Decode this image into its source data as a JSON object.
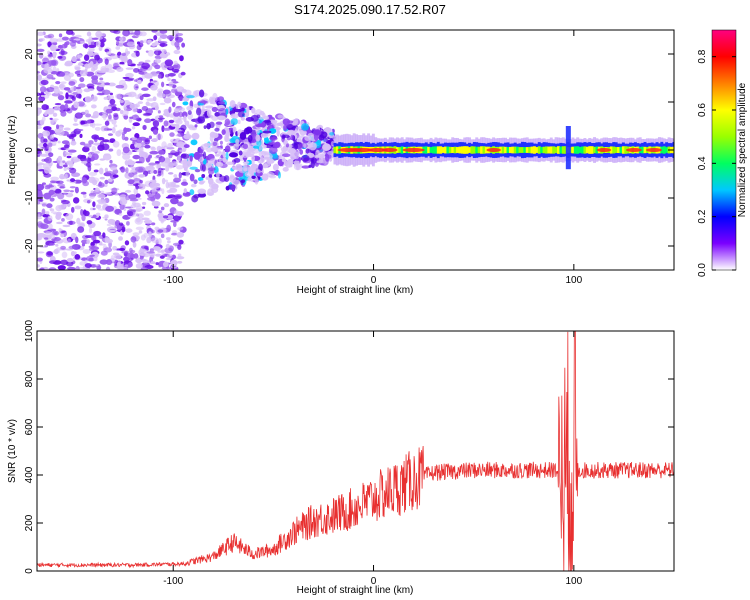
{
  "title": "S174.2025.090.17.52.R07",
  "chart_data": [
    {
      "type": "heatmap",
      "xlabel": "Height of straight line (km)",
      "ylabel": "Frequency (Hz)",
      "xlim": [
        -168,
        150
      ],
      "ylim": [
        -25,
        25
      ],
      "x_ticks": [
        -100,
        0,
        100
      ],
      "x_tick_labels": [
        "-100",
        "0",
        "100"
      ],
      "y_ticks": [
        -20,
        -10,
        0,
        10,
        20
      ],
      "y_tick_labels": [
        "-20",
        "-10",
        "0",
        "10",
        "20"
      ],
      "colorbar": {
        "label": "Normalized spectral amplitude",
        "range": [
          0,
          0.9
        ],
        "ticks": [
          0.0,
          0.2,
          0.4,
          0.6,
          0.8
        ],
        "tick_labels": [
          "0.0",
          "0.2",
          "0.4",
          "0.6",
          "0.8"
        ],
        "colormap": [
          "#ffffff",
          "#7a00ff",
          "#0000ff",
          "#00c8ff",
          "#00ff60",
          "#9aff00",
          "#ffff00",
          "#ff8000",
          "#ff0000",
          "#ff0080"
        ]
      },
      "features": [
        {
          "description": "noise band",
          "x_range": [
            -168,
            -95
          ],
          "freq_range": [
            -25,
            25
          ],
          "amplitude": 0.1
        },
        {
          "description": "transition",
          "x_range": [
            -95,
            -20
          ],
          "freq_range": [
            -8,
            10
          ],
          "amplitude": 0.25
        },
        {
          "description": "signal line",
          "x_range": [
            -20,
            150
          ],
          "freq": 0,
          "amplitude": 0.6
        },
        {
          "description": "spike",
          "x": 97,
          "freq_range": [
            -4,
            5
          ],
          "amplitude": 0.3
        }
      ]
    },
    {
      "type": "line",
      "xlabel": "Height of straight line (km)",
      "ylabel": "SNR (10 * v/v)",
      "xlim": [
        -168,
        150
      ],
      "ylim": [
        0,
        1000
      ],
      "x_ticks": [
        -100,
        0,
        100
      ],
      "x_tick_labels": [
        "-100",
        "0",
        "100"
      ],
      "y_ticks": [
        0,
        200,
        400,
        600,
        800,
        1000
      ],
      "y_tick_labels": [
        "0",
        "200",
        "400",
        "600",
        "800",
        "1000"
      ],
      "color": "#e83030",
      "envelope": [
        {
          "x": -168,
          "y": 25
        },
        {
          "x": -120,
          "y": 25
        },
        {
          "x": -95,
          "y": 30
        },
        {
          "x": -80,
          "y": 60
        },
        {
          "x": -70,
          "y": 120
        },
        {
          "x": -60,
          "y": 70
        },
        {
          "x": -50,
          "y": 90
        },
        {
          "x": -40,
          "y": 160
        },
        {
          "x": -30,
          "y": 210
        },
        {
          "x": -20,
          "y": 230
        },
        {
          "x": -10,
          "y": 260
        },
        {
          "x": 0,
          "y": 300
        },
        {
          "x": 10,
          "y": 340
        },
        {
          "x": 20,
          "y": 380
        },
        {
          "x": 30,
          "y": 410
        },
        {
          "x": 50,
          "y": 420
        },
        {
          "x": 90,
          "y": 420
        },
        {
          "x": 100,
          "y": 420
        },
        {
          "x": 150,
          "y": 420
        }
      ]
    }
  ]
}
